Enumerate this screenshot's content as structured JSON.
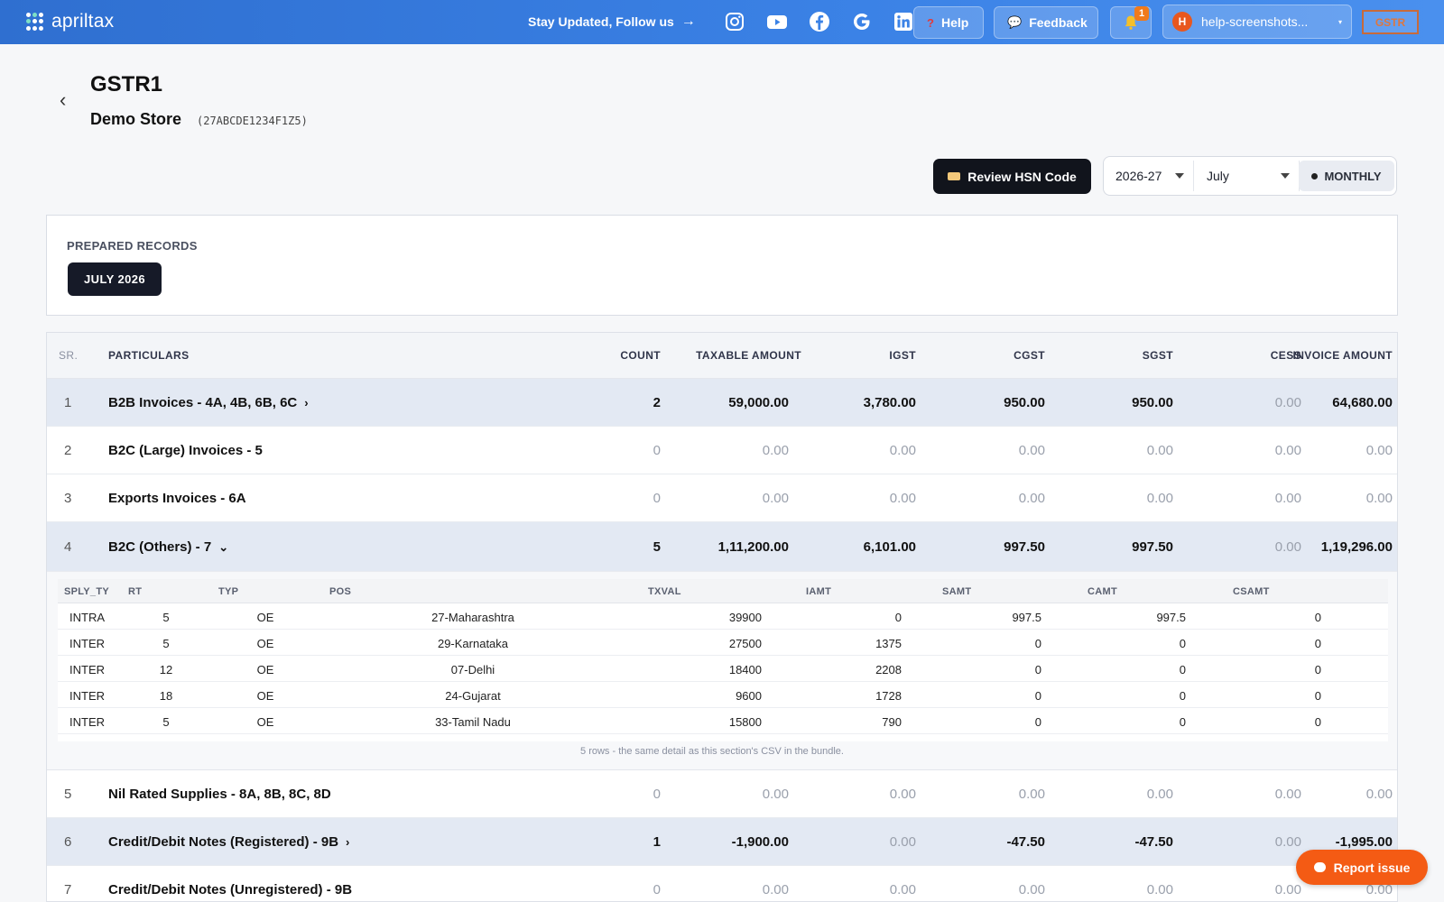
{
  "topbar": {
    "brand": "apriltax",
    "follow_text": "Stay Updated, Follow us",
    "help_label": "Help",
    "feedback_label": "Feedback",
    "notifications_count": "1",
    "user_initial": "H",
    "user_label": "help-screenshots...",
    "product_tag": "GSTR",
    "icons": [
      "instagram-icon",
      "youtube-icon",
      "facebook-icon",
      "google-icon",
      "linkedin-icon"
    ]
  },
  "header": {
    "title": "GSTR1",
    "store_name": "Demo Store",
    "gstin": "(27ABCDE1234F1Z5)"
  },
  "controls": {
    "review_label": "Review HSN Code",
    "year": "2026-27",
    "month": "July",
    "frequency": "MONTHLY"
  },
  "prepared": {
    "label": "PREPARED RECORDS",
    "chip": "JULY 2026"
  },
  "table": {
    "headers": {
      "sr": "SR.",
      "particulars": "PARTICULARS",
      "count": "COUNT",
      "taxable": "TAXABLE AMOUNT",
      "igst": "IGST",
      "cgst": "CGST",
      "sgst": "SGST",
      "cess": "CESS",
      "invoice": "INVOICE AMOUNT"
    },
    "rows": [
      {
        "sr": "1",
        "particulars": "B2B Invoices - 4A, 4B, 6B, 6C",
        "chev": "›",
        "count": "2",
        "taxable": "59,000.00",
        "igst": "3,780.00",
        "cgst": "950.00",
        "sgst": "950.00",
        "cess": "0.00",
        "invoice": "64,680.00"
      },
      {
        "sr": "2",
        "particulars": "B2C (Large) Invoices - 5",
        "chev": "",
        "count": "0",
        "taxable": "0.00",
        "igst": "0.00",
        "cgst": "0.00",
        "sgst": "0.00",
        "cess": "0.00",
        "invoice": "0.00"
      },
      {
        "sr": "3",
        "particulars": "Exports Invoices - 6A",
        "chev": "",
        "count": "0",
        "taxable": "0.00",
        "igst": "0.00",
        "cgst": "0.00",
        "sgst": "0.00",
        "cess": "0.00",
        "invoice": "0.00"
      },
      {
        "sr": "4",
        "particulars": "B2C (Others) - 7",
        "chev": "⌄",
        "count": "5",
        "taxable": "1,11,200.00",
        "igst": "6,101.00",
        "cgst": "997.50",
        "sgst": "997.50",
        "cess": "0.00",
        "invoice": "1,19,296.00"
      },
      {
        "sr": "5",
        "particulars": "Nil Rated Supplies - 8A, 8B, 8C, 8D",
        "chev": "",
        "count": "0",
        "taxable": "0.00",
        "igst": "0.00",
        "cgst": "0.00",
        "sgst": "0.00",
        "cess": "0.00",
        "invoice": "0.00"
      },
      {
        "sr": "6",
        "particulars": "Credit/Debit Notes (Registered) - 9B",
        "chev": "›",
        "count": "1",
        "taxable": "-1,900.00",
        "igst": "0.00",
        "cgst": "-47.50",
        "sgst": "-47.50",
        "cess": "0.00",
        "invoice": "-1,995.00"
      },
      {
        "sr": "7",
        "particulars": "Credit/Debit Notes (Unregistered) - 9B",
        "chev": "",
        "count": "0",
        "taxable": "0.00",
        "igst": "0.00",
        "cgst": "0.00",
        "sgst": "0.00",
        "cess": "0.00",
        "invoice": "0.00"
      }
    ]
  },
  "detail": {
    "headers": {
      "sply_ty": "SPLY_TY",
      "rt": "RT",
      "typ": "TYP",
      "pos": "POS",
      "txval": "TXVAL",
      "iamt": "IAMT",
      "samt": "SAMT",
      "camt": "CAMT",
      "csamt": "CSAMT"
    },
    "rows": [
      {
        "sply_ty": "INTRA",
        "rt": "5",
        "typ": "OE",
        "pos": "27-Maharashtra",
        "txval": "39900",
        "iamt": "0",
        "samt": "997.5",
        "camt": "997.5",
        "csamt": "0"
      },
      {
        "sply_ty": "INTER",
        "rt": "5",
        "typ": "OE",
        "pos": "29-Karnataka",
        "txval": "27500",
        "iamt": "1375",
        "samt": "0",
        "camt": "0",
        "csamt": "0"
      },
      {
        "sply_ty": "INTER",
        "rt": "12",
        "typ": "OE",
        "pos": "07-Delhi",
        "txval": "18400",
        "iamt": "2208",
        "samt": "0",
        "camt": "0",
        "csamt": "0"
      },
      {
        "sply_ty": "INTER",
        "rt": "18",
        "typ": "OE",
        "pos": "24-Gujarat",
        "txval": "9600",
        "iamt": "1728",
        "samt": "0",
        "camt": "0",
        "csamt": "0"
      },
      {
        "sply_ty": "INTER",
        "rt": "5",
        "typ": "OE",
        "pos": "33-Tamil Nadu",
        "txval": "15800",
        "iamt": "790",
        "samt": "0",
        "camt": "0",
        "csamt": "0"
      }
    ],
    "note": "5 rows - the same detail as this section's CSV in the bundle."
  },
  "report_label": "Report issue"
}
